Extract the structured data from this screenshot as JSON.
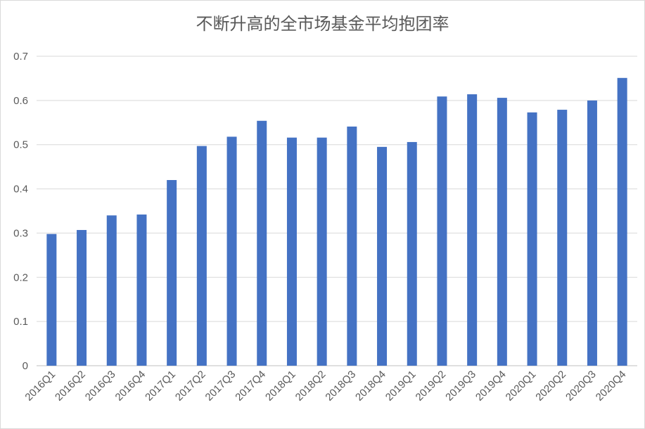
{
  "chart_data": {
    "type": "bar",
    "title": "不断升高的全市场基金平均抱团率",
    "xlabel": "",
    "ylabel": "",
    "categories": [
      "2016Q1",
      "2016Q2",
      "2016Q3",
      "2016Q4",
      "2017Q1",
      "2017Q2",
      "2017Q3",
      "2017Q4",
      "2018Q1",
      "2018Q2",
      "2018Q3",
      "2018Q4",
      "2019Q1",
      "2019Q2",
      "2019Q3",
      "2019Q4",
      "2020Q1",
      "2020Q2",
      "2020Q3",
      "2020Q4"
    ],
    "series": [
      {
        "values": [
          0.298,
          0.307,
          0.34,
          0.342,
          0.42,
          0.497,
          0.518,
          0.554,
          0.516,
          0.516,
          0.541,
          0.495,
          0.506,
          0.609,
          0.614,
          0.606,
          0.573,
          0.579,
          0.6,
          0.651
        ]
      }
    ],
    "ylim": [
      0,
      0.7
    ],
    "yticks": [
      "0",
      "0.1",
      "0.2",
      "0.3",
      "0.4",
      "0.5",
      "0.6",
      "0.7"
    ],
    "grid": true,
    "legend": "none",
    "bar_color": "#4472C4"
  }
}
